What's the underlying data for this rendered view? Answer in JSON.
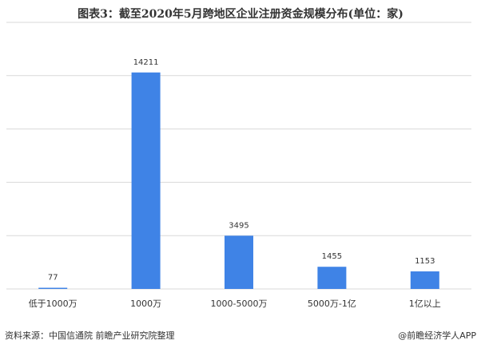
{
  "chart_data": {
    "type": "bar",
    "title": "图表3：截至2020年5月跨地区企业注册资金规模分布(单位：家)",
    "categories": [
      "低于1000万",
      "1000万",
      "1000-5000万",
      "5000万-1亿",
      "1亿以上"
    ],
    "values": [
      77,
      14211,
      3495,
      1455,
      1153
    ],
    "color": "#3f83e6",
    "ylim": [
      0,
      17500
    ],
    "yticks": [
      0,
      3500,
      7000,
      10500,
      14000,
      17500
    ],
    "grid": true,
    "source": "资料来源：中国信通院 前瞻产业研究院整理",
    "credit": "@前瞻经济学人APP"
  }
}
